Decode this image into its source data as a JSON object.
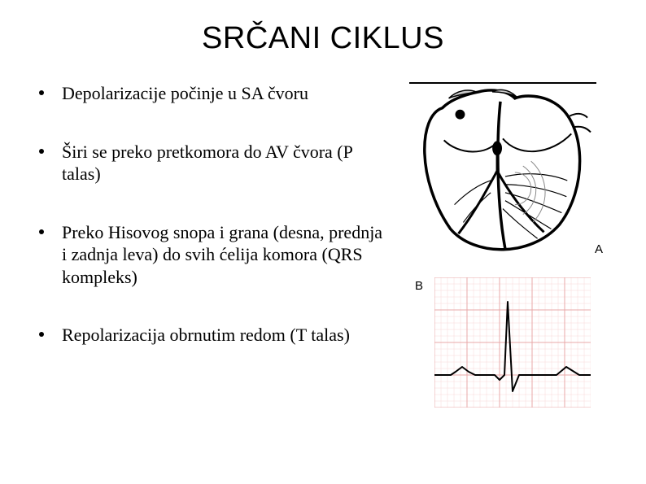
{
  "title": "SRČANI CIKLUS",
  "bullets": [
    {
      "text": "Depolarizacije počinje u SA čvoru"
    },
    {
      "text": "Širi se preko pretkomora do AV čvora (P talas)"
    },
    {
      "text": "Preko Hisovog snopa i grana (desna, prednja i zadnja leva) do svih ćelija komora (QRS kompleks)"
    },
    {
      "text": "Repolarizacija obrnutim redom (T talas)"
    }
  ],
  "figure_a": {
    "label": "A",
    "type": "infographic",
    "description": "heart conduction system illustration",
    "outline_color": "#000000",
    "fill_color": "#ffffff",
    "shade_color": "#c9c9c9",
    "stroke_width": 3
  },
  "figure_b": {
    "label": "B",
    "type": "line",
    "description": "ECG waveform on grid paper",
    "grid_minor_color": "#f8d8d8",
    "grid_major_color": "#e9a9a9",
    "background_color": "#ffffff",
    "trace_color": "#000000",
    "trace_width": 2,
    "x_range": [
      0,
      192
    ],
    "y_range": [
      0,
      160
    ],
    "baseline_y": 120,
    "grid_minor_step": 8,
    "grid_major_step": 40,
    "ecg_points": [
      [
        0,
        120
      ],
      [
        20,
        120
      ],
      [
        26,
        116
      ],
      [
        34,
        110
      ],
      [
        42,
        116
      ],
      [
        50,
        120
      ],
      [
        74,
        120
      ],
      [
        80,
        126
      ],
      [
        86,
        120
      ],
      [
        90,
        30
      ],
      [
        96,
        140
      ],
      [
        104,
        120
      ],
      [
        150,
        120
      ],
      [
        162,
        110
      ],
      [
        178,
        120
      ],
      [
        192,
        120
      ]
    ]
  },
  "colors": {
    "text": "#000000",
    "background": "#ffffff"
  },
  "typography": {
    "title_fontsize": 38,
    "title_family": "Arial",
    "body_fontsize": 22,
    "body_family": "Times New Roman"
  }
}
